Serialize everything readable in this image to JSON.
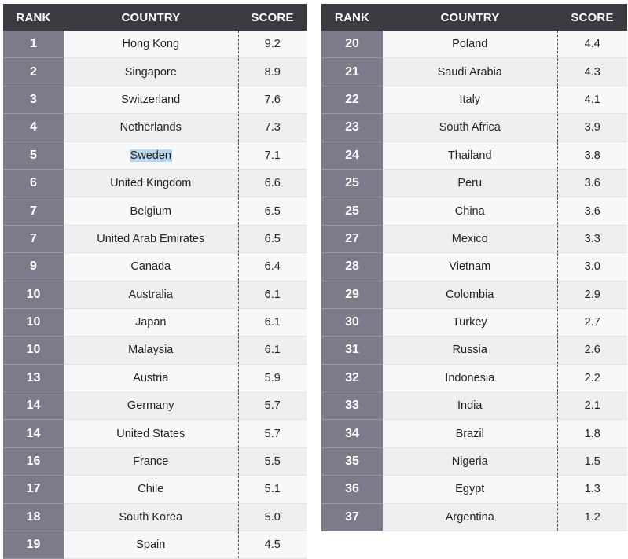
{
  "headers": {
    "rank": "RANK",
    "country": "COUNTRY",
    "score": "SCORE"
  },
  "highlighted_country": "Sweden",
  "colors": {
    "header_bg": "#3b3a41",
    "rank_bg": "#7d7a8a",
    "row_even": "#efefef",
    "row_odd": "#f8f8f8",
    "selection": "#b8d6ee"
  },
  "left_rows": [
    {
      "rank": "1",
      "country": "Hong Kong",
      "score": "9.2"
    },
    {
      "rank": "2",
      "country": "Singapore",
      "score": "8.9"
    },
    {
      "rank": "3",
      "country": "Switzerland",
      "score": "7.6"
    },
    {
      "rank": "4",
      "country": "Netherlands",
      "score": "7.3"
    },
    {
      "rank": "5",
      "country": "Sweden",
      "score": "7.1"
    },
    {
      "rank": "6",
      "country": "United Kingdom",
      "score": "6.6"
    },
    {
      "rank": "7",
      "country": "Belgium",
      "score": "6.5"
    },
    {
      "rank": "7",
      "country": "United Arab Emirates",
      "score": "6.5"
    },
    {
      "rank": "9",
      "country": "Canada",
      "score": "6.4"
    },
    {
      "rank": "10",
      "country": "Australia",
      "score": "6.1"
    },
    {
      "rank": "10",
      "country": "Japan",
      "score": "6.1"
    },
    {
      "rank": "10",
      "country": "Malaysia",
      "score": "6.1"
    },
    {
      "rank": "13",
      "country": "Austria",
      "score": "5.9"
    },
    {
      "rank": "14",
      "country": "Germany",
      "score": "5.7"
    },
    {
      "rank": "14",
      "country": "United States",
      "score": "5.7"
    },
    {
      "rank": "16",
      "country": "France",
      "score": "5.5"
    },
    {
      "rank": "17",
      "country": "Chile",
      "score": "5.1"
    },
    {
      "rank": "18",
      "country": "South Korea",
      "score": "5.0"
    },
    {
      "rank": "19",
      "country": "Spain",
      "score": "4.5"
    }
  ],
  "right_rows": [
    {
      "rank": "20",
      "country": "Poland",
      "score": "4.4"
    },
    {
      "rank": "21",
      "country": "Saudi Arabia",
      "score": "4.3"
    },
    {
      "rank": "22",
      "country": "Italy",
      "score": "4.1"
    },
    {
      "rank": "23",
      "country": "South Africa",
      "score": "3.9"
    },
    {
      "rank": "24",
      "country": "Thailand",
      "score": "3.8"
    },
    {
      "rank": "25",
      "country": "Peru",
      "score": "3.6"
    },
    {
      "rank": "25",
      "country": "China",
      "score": "3.6"
    },
    {
      "rank": "27",
      "country": "Mexico",
      "score": "3.3"
    },
    {
      "rank": "28",
      "country": "Vietnam",
      "score": "3.0"
    },
    {
      "rank": "29",
      "country": "Colombia",
      "score": "2.9"
    },
    {
      "rank": "30",
      "country": "Turkey",
      "score": "2.7"
    },
    {
      "rank": "31",
      "country": "Russia",
      "score": "2.6"
    },
    {
      "rank": "32",
      "country": "Indonesia",
      "score": "2.2"
    },
    {
      "rank": "33",
      "country": "India",
      "score": "2.1"
    },
    {
      "rank": "34",
      "country": "Brazil",
      "score": "1.8"
    },
    {
      "rank": "35",
      "country": "Nigeria",
      "score": "1.5"
    },
    {
      "rank": "36",
      "country": "Egypt",
      "score": "1.3"
    },
    {
      "rank": "37",
      "country": "Argentina",
      "score": "1.2"
    }
  ]
}
